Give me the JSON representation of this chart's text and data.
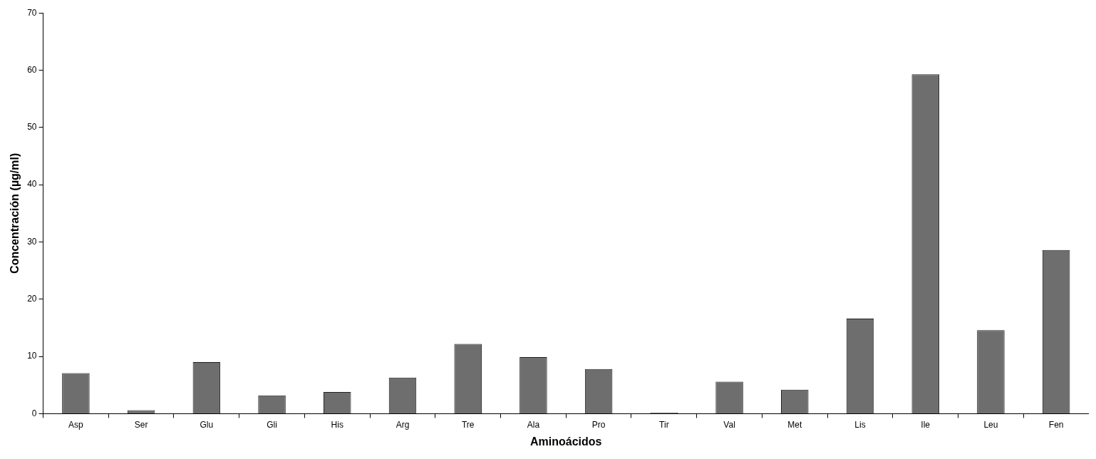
{
  "chart_data": {
    "type": "bar",
    "xlabel": "Aminoácidos",
    "ylabel": "Concentración (µg/ml)",
    "categories": [
      "Asp",
      "Ser",
      "Glu",
      "Gli",
      "His",
      "Arg",
      "Tre",
      "Ala",
      "Pro",
      "Tir",
      "Val",
      "Met",
      "Lis",
      "Ile",
      "Leu",
      "Fen"
    ],
    "values": [
      7.1,
      0.6,
      9.0,
      3.2,
      3.8,
      6.3,
      12.2,
      9.9,
      7.8,
      0.2,
      5.6,
      4.2,
      16.6,
      59.3,
      14.6,
      28.6
    ],
    "color": "#6e6e6e",
    "ylim": [
      0,
      70
    ],
    "yticks": [
      0,
      10,
      20,
      30,
      40,
      50,
      60,
      70
    ],
    "grid": false,
    "legend": false
  }
}
